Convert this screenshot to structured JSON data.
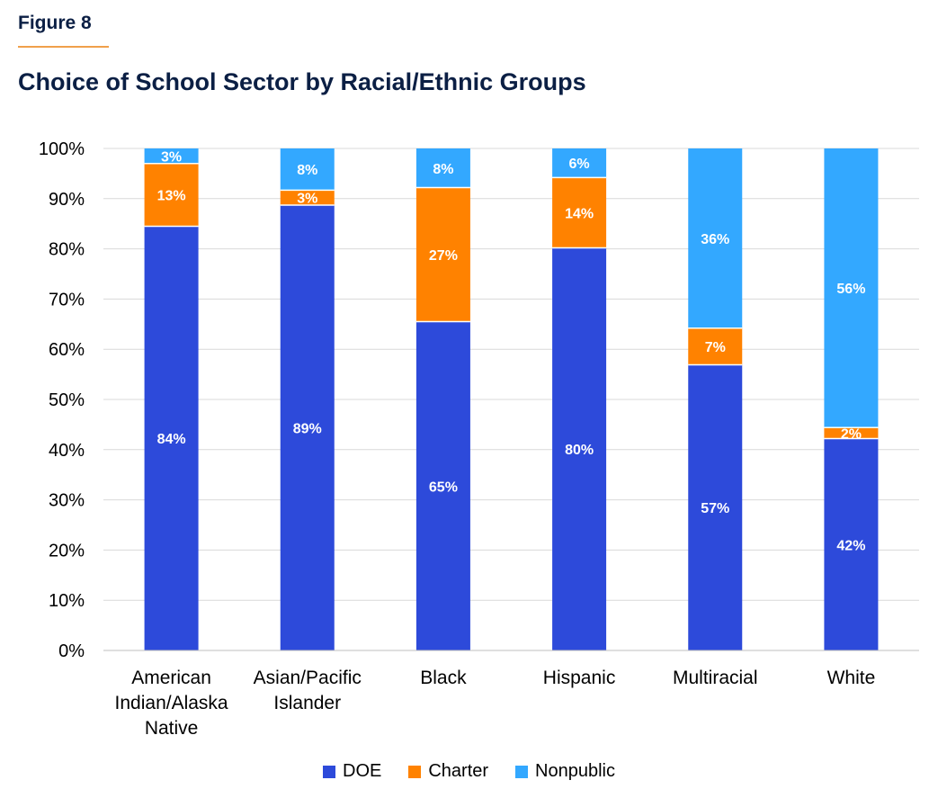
{
  "figure_label": "Figure 8",
  "title": "Choice of School Sector by Racial/Ethnic Groups",
  "colors": {
    "DOE": "#2d4ada",
    "Charter": "#ff8200",
    "Nonpublic": "#33a8ff",
    "rule": "#f0a04b"
  },
  "chart_data": {
    "type": "bar",
    "stacked": true,
    "categories": [
      [
        "American",
        "Indian/Alaska",
        "Native"
      ],
      [
        "Asian/Pacific",
        "Islander"
      ],
      [
        "Black"
      ],
      [
        "Hispanic"
      ],
      [
        "Multiracial"
      ],
      [
        "White"
      ]
    ],
    "series": [
      {
        "name": "DOE",
        "values": [
          84.5,
          88.7,
          65.5,
          80.2,
          56.9,
          42.2
        ],
        "labels": [
          "84%",
          "89%",
          "65%",
          "80%",
          "57%",
          "42%"
        ]
      },
      {
        "name": "Charter",
        "values": [
          12.5,
          3.0,
          26.7,
          14.0,
          7.3,
          2.2
        ],
        "labels": [
          "13%",
          "3%",
          "27%",
          "14%",
          "7%",
          "2%"
        ]
      },
      {
        "name": "Nonpublic",
        "values": [
          3.0,
          8.3,
          7.8,
          5.8,
          35.8,
          55.6
        ],
        "labels": [
          "3%",
          "8%",
          "8%",
          "6%",
          "36%",
          "56%"
        ]
      }
    ],
    "y_ticks": [
      "0%",
      "10%",
      "20%",
      "30%",
      "40%",
      "50%",
      "60%",
      "70%",
      "80%",
      "90%",
      "100%"
    ],
    "ylim": [
      0,
      100
    ],
    "grid": true,
    "legend_position": "bottom"
  }
}
